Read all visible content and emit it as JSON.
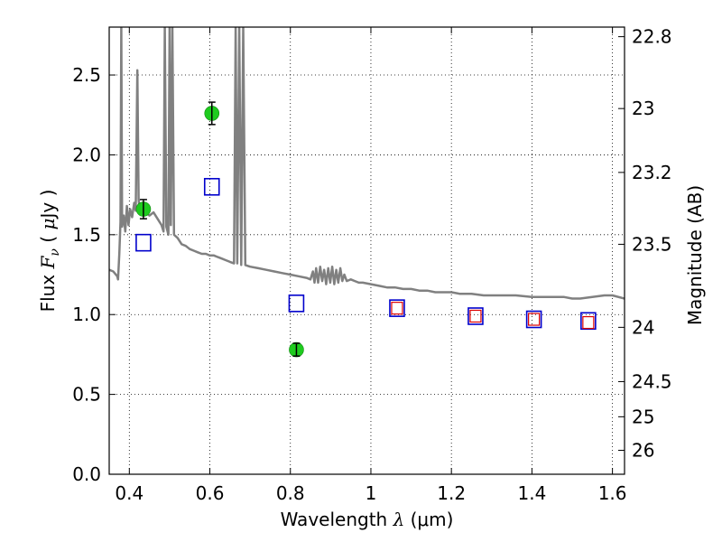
{
  "chart_data": {
    "type": "scatter",
    "title": "",
    "xlabel": "Wavelength  λ (μm)",
    "xlabel_parts": {
      "text": "Wavelength  ",
      "symbol": "λ",
      "unit": " (μm)"
    },
    "ylabel": "Flux  Fν  ( μJy )",
    "ylabel_parts": {
      "text": "Flux  ",
      "symbol": "F",
      "subscript": "ν",
      "unit_pre": "  ( ",
      "unit_mu": "μ",
      "unit_post": "Jy )"
    },
    "y2label": "Magnitude (AB)",
    "xlim": [
      0.35,
      1.63
    ],
    "ylim": [
      0.0,
      2.8
    ],
    "grid": true,
    "x_ticks": [
      0.4,
      0.6,
      0.8,
      1.0,
      1.2,
      1.4,
      1.6
    ],
    "x_tick_labels": [
      "0.4",
      "0.6",
      "0.8",
      "1",
      "1.2",
      "1.4",
      "1.6"
    ],
    "y_ticks": [
      0.0,
      0.5,
      1.0,
      1.5,
      2.0,
      2.5
    ],
    "y_tick_labels": [
      "0.0",
      "0.5",
      "1.0",
      "1.5",
      "2.0",
      "2.5"
    ],
    "y2_ticks": [
      {
        "label": "22.8",
        "flux": 2.74
      },
      {
        "label": "23",
        "flux": 2.29
      },
      {
        "label": "23.2",
        "flux": 1.89
      },
      {
        "label": "23.5",
        "flux": 1.44
      },
      {
        "label": "24",
        "flux": 0.92
      },
      {
        "label": "24.5",
        "flux": 0.58
      },
      {
        "label": "25",
        "flux": 0.36
      },
      {
        "label": "26",
        "flux": 0.15
      }
    ],
    "series": [
      {
        "kind": "line",
        "color": "#808080",
        "points": [
          [
            0.35,
            1.28
          ],
          [
            0.36,
            1.27
          ],
          [
            0.37,
            1.24
          ],
          [
            0.372,
            1.22
          ],
          [
            0.375,
            1.38
          ],
          [
            0.378,
            1.58
          ],
          [
            0.38,
            2.8
          ],
          [
            0.382,
            1.55
          ],
          [
            0.386,
            1.62
          ],
          [
            0.39,
            1.52
          ],
          [
            0.394,
            1.68
          ],
          [
            0.398,
            1.56
          ],
          [
            0.402,
            1.66
          ],
          [
            0.407,
            1.61
          ],
          [
            0.412,
            1.7
          ],
          [
            0.416,
            1.65
          ],
          [
            0.42,
            2.53
          ],
          [
            0.423,
            1.72
          ],
          [
            0.426,
            1.64
          ],
          [
            0.432,
            1.68
          ],
          [
            0.44,
            1.64
          ],
          [
            0.45,
            1.62
          ],
          [
            0.46,
            1.64
          ],
          [
            0.47,
            1.6
          ],
          [
            0.48,
            1.56
          ],
          [
            0.485,
            1.52
          ],
          [
            0.488,
            2.8
          ],
          [
            0.492,
            1.55
          ],
          [
            0.497,
            1.5
          ],
          [
            0.5,
            2.8
          ],
          [
            0.503,
            1.56
          ],
          [
            0.507,
            2.8
          ],
          [
            0.511,
            1.5
          ],
          [
            0.52,
            1.48
          ],
          [
            0.53,
            1.44
          ],
          [
            0.54,
            1.43
          ],
          [
            0.55,
            1.41
          ],
          [
            0.56,
            1.4
          ],
          [
            0.57,
            1.39
          ],
          [
            0.58,
            1.38
          ],
          [
            0.59,
            1.38
          ],
          [
            0.6,
            1.37
          ],
          [
            0.61,
            1.37
          ],
          [
            0.62,
            1.36
          ],
          [
            0.63,
            1.35
          ],
          [
            0.64,
            1.34
          ],
          [
            0.65,
            1.33
          ],
          [
            0.66,
            1.32
          ],
          [
            0.664,
            2.8
          ],
          [
            0.668,
            1.32
          ],
          [
            0.673,
            2.8
          ],
          [
            0.678,
            1.31
          ],
          [
            0.683,
            2.8
          ],
          [
            0.688,
            1.31
          ],
          [
            0.7,
            1.3
          ],
          [
            0.72,
            1.29
          ],
          [
            0.74,
            1.28
          ],
          [
            0.76,
            1.27
          ],
          [
            0.78,
            1.26
          ],
          [
            0.8,
            1.25
          ],
          [
            0.82,
            1.24
          ],
          [
            0.84,
            1.23
          ],
          [
            0.85,
            1.22
          ],
          [
            0.856,
            1.27
          ],
          [
            0.86,
            1.2
          ],
          [
            0.864,
            1.29
          ],
          [
            0.869,
            1.2
          ],
          [
            0.874,
            1.3
          ],
          [
            0.879,
            1.21
          ],
          [
            0.884,
            1.28
          ],
          [
            0.889,
            1.19
          ],
          [
            0.894,
            1.29
          ],
          [
            0.899,
            1.2
          ],
          [
            0.904,
            1.3
          ],
          [
            0.909,
            1.19
          ],
          [
            0.914,
            1.28
          ],
          [
            0.919,
            1.2
          ],
          [
            0.924,
            1.29
          ],
          [
            0.929,
            1.21
          ],
          [
            0.934,
            1.25
          ],
          [
            0.94,
            1.21
          ],
          [
            0.95,
            1.22
          ],
          [
            0.96,
            1.21
          ],
          [
            0.97,
            1.2
          ],
          [
            0.98,
            1.2
          ],
          [
            1.0,
            1.19
          ],
          [
            1.02,
            1.18
          ],
          [
            1.04,
            1.17
          ],
          [
            1.06,
            1.17
          ],
          [
            1.08,
            1.16
          ],
          [
            1.1,
            1.16
          ],
          [
            1.12,
            1.15
          ],
          [
            1.14,
            1.15
          ],
          [
            1.16,
            1.14
          ],
          [
            1.18,
            1.14
          ],
          [
            1.2,
            1.14
          ],
          [
            1.22,
            1.13
          ],
          [
            1.25,
            1.13
          ],
          [
            1.28,
            1.12
          ],
          [
            1.3,
            1.12
          ],
          [
            1.33,
            1.12
          ],
          [
            1.36,
            1.12
          ],
          [
            1.4,
            1.11
          ],
          [
            1.44,
            1.11
          ],
          [
            1.48,
            1.11
          ],
          [
            1.5,
            1.1
          ],
          [
            1.52,
            1.1
          ],
          [
            1.55,
            1.11
          ],
          [
            1.58,
            1.12
          ],
          [
            1.6,
            1.12
          ],
          [
            1.63,
            1.1
          ]
        ]
      },
      {
        "kind": "marker-square-open",
        "color": "#0000cc",
        "points": [
          [
            0.435,
            1.45
          ],
          [
            0.605,
            1.8
          ],
          [
            0.815,
            1.07
          ],
          [
            1.065,
            1.04
          ],
          [
            1.26,
            0.99
          ],
          [
            1.405,
            0.97
          ],
          [
            1.54,
            0.96
          ]
        ]
      },
      {
        "kind": "marker-square-open-small",
        "color": "#dd0000",
        "points": [
          [
            1.065,
            1.04
          ],
          [
            1.26,
            0.99
          ],
          [
            1.405,
            0.97
          ],
          [
            1.54,
            0.95
          ]
        ]
      },
      {
        "kind": "marker-circle-errorbar",
        "color": "#1ecb1e",
        "points": [
          {
            "x": 0.435,
            "y": 1.66,
            "err": 0.06
          },
          {
            "x": 0.605,
            "y": 2.26,
            "err": 0.07
          },
          {
            "x": 0.815,
            "y": 0.78,
            "err": 0.04
          }
        ]
      }
    ]
  }
}
